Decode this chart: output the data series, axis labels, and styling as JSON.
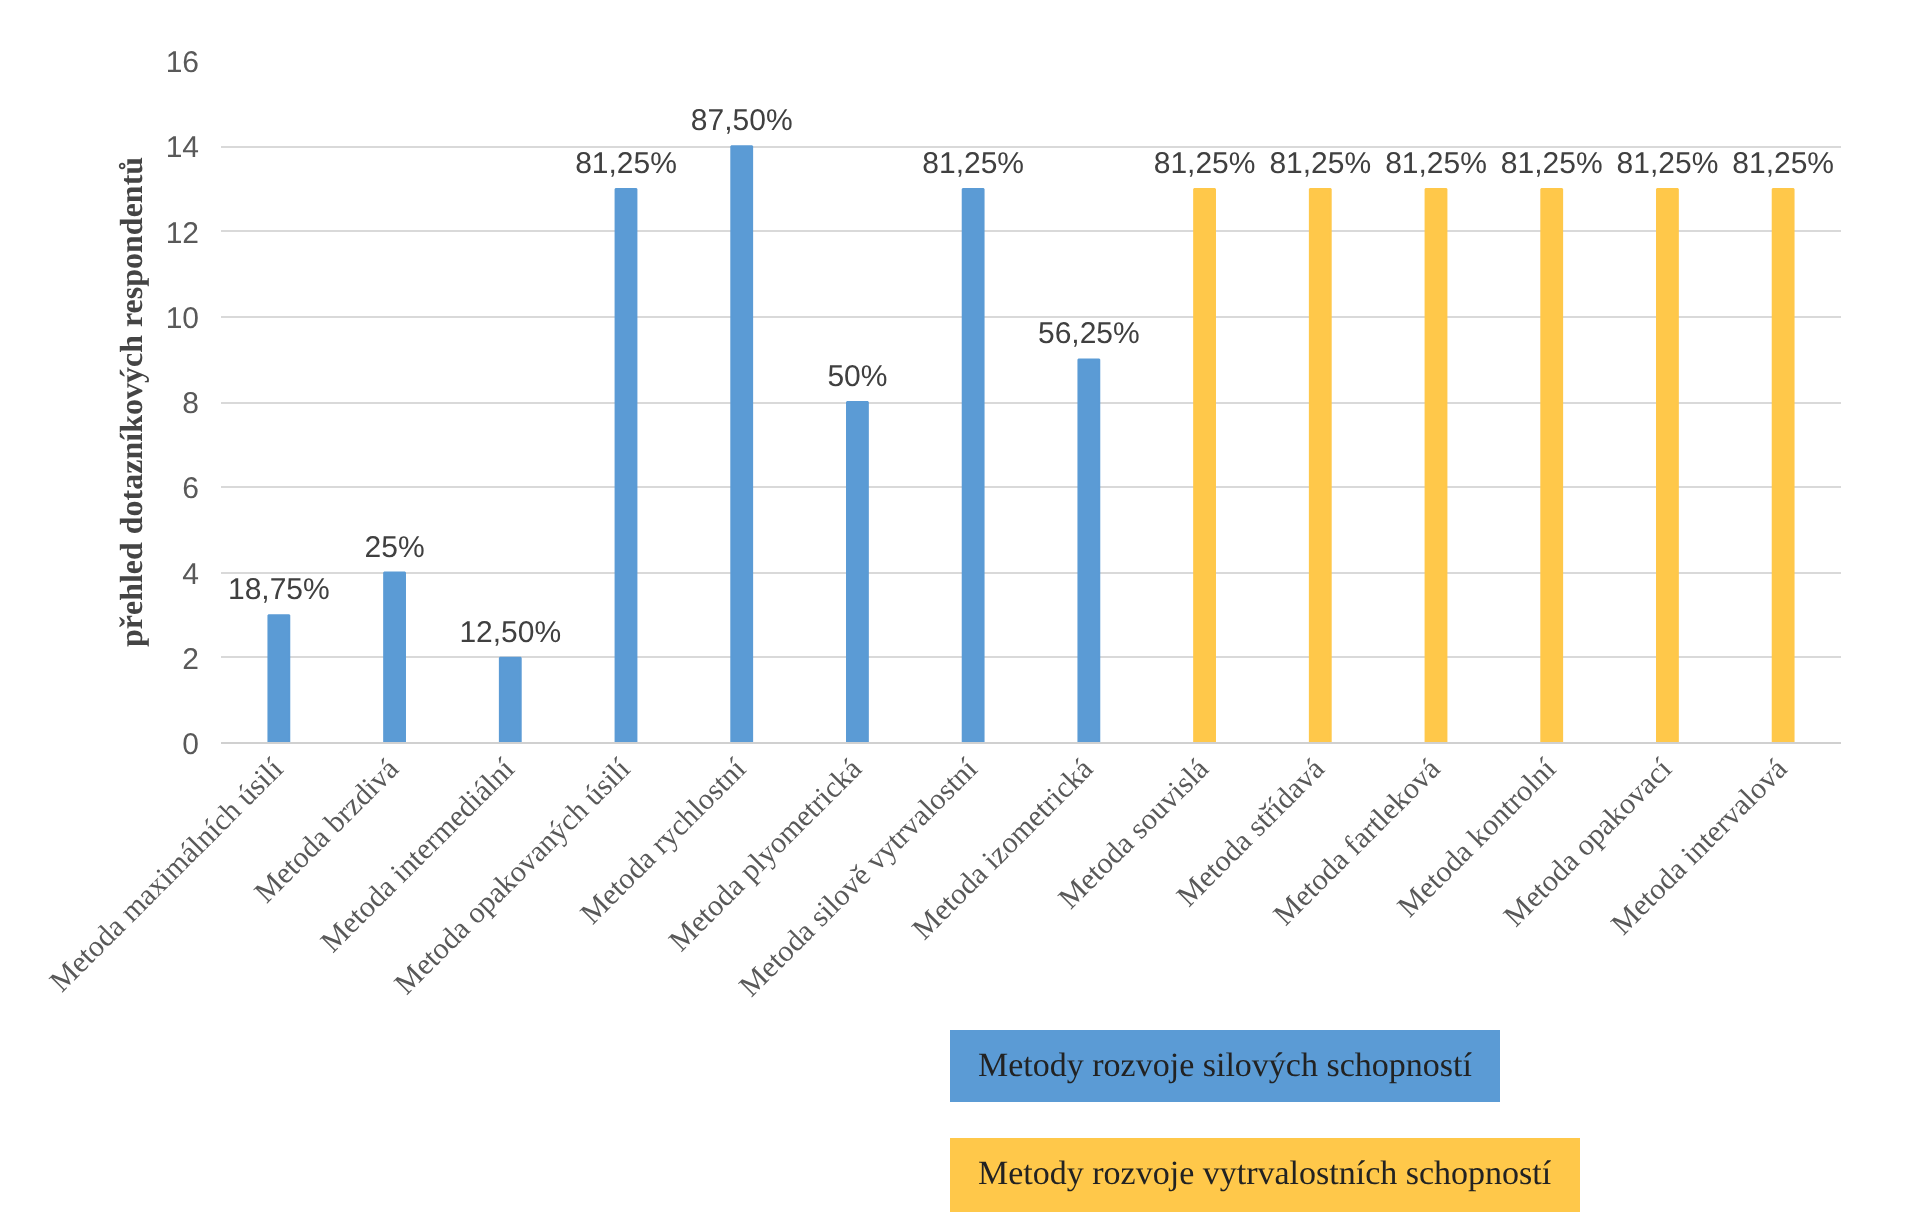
{
  "chart_data": {
    "type": "bar",
    "ylabel": "přehled dotazníkových respondentů",
    "categories": [
      "Metoda maximálních úsilí",
      "Metoda brzdivá",
      "Metoda intermediální",
      "Metoda opakovaných úsilí",
      "Metoda rychlostní",
      "Metoda plyometrická",
      "Metoda silově vytrvalostní",
      "Metoda izometrická",
      "Metoda souvislá",
      "Metoda střídavá",
      "Metoda fartleková",
      "Metoda kontrolní",
      "Metoda opakovací",
      "Metoda intervalová"
    ],
    "series": [
      {
        "name": "Metody rozvoje silových schopností",
        "color": "#5b9bd5",
        "values": [
          3,
          4,
          2,
          13,
          14,
          8,
          13,
          9,
          null,
          null,
          null,
          null,
          null,
          null
        ]
      },
      {
        "name": "Metody rozvoje vytrvalostních schopností",
        "color": "#ffc84a",
        "values": [
          null,
          null,
          null,
          null,
          null,
          null,
          null,
          null,
          13,
          13,
          13,
          13,
          13,
          13
        ]
      }
    ],
    "annotations": [
      {
        "text": "18,75%",
        "x": "Metoda maximálních úsilí",
        "y": 3
      },
      {
        "text": "25%",
        "x": "Metoda brzdivá",
        "y": 4
      },
      {
        "text": "12,50%",
        "x": "Metoda intermediální",
        "y": 2
      },
      {
        "text": "81,25%",
        "x": "Metoda opakovaných úsilí",
        "y": 13
      },
      {
        "text": "87,50%",
        "x": "Metoda rychlostní",
        "y": 14
      },
      {
        "text": "50%",
        "x": "Metoda plyometrická",
        "y": 8
      },
      {
        "text": "81,25%",
        "x": "Metoda silově vytrvalostní",
        "y": 13
      },
      {
        "text": "56,25%",
        "x": "Metoda izometrická",
        "y": 9
      },
      {
        "text": "81,25%",
        "x": "Metoda souvislá",
        "y": 13
      },
      {
        "text": "81,25%",
        "x": "Metoda střídavá",
        "y": 13
      },
      {
        "text": "81,25%",
        "x": "Metoda fartleková",
        "y": 13
      },
      {
        "text": "81,25%",
        "x": "Metoda kontrolní",
        "y": 13
      },
      {
        "text": "81,25%",
        "x": "Metoda opakovací",
        "y": 13
      },
      {
        "text": "81,25%",
        "x": "Metoda intervalová",
        "y": 13
      }
    ],
    "ylim": [
      0,
      16
    ],
    "yticks": [
      0,
      2,
      4,
      6,
      8,
      10,
      12,
      14,
      16
    ],
    "grid": "y",
    "legend": "bottom right"
  }
}
